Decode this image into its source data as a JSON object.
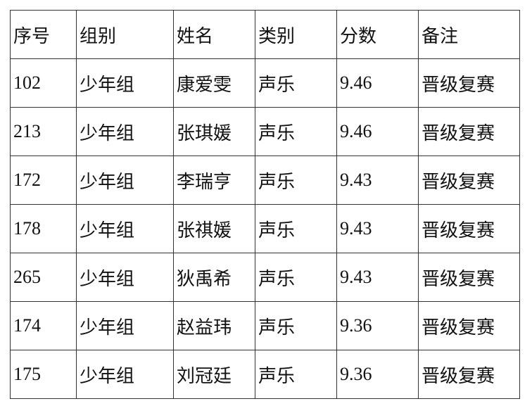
{
  "table": {
    "headers": [
      "序号",
      "组别",
      "姓名",
      "类别",
      "分数",
      "备注"
    ],
    "rows": [
      [
        "102",
        "少年组",
        "康爱雯",
        "声乐",
        "9.46",
        "晋级复赛"
      ],
      [
        "213",
        "少年组",
        "张琪媛",
        "声乐",
        "9.46",
        "晋级复赛"
      ],
      [
        "172",
        "少年组",
        "李瑞亨",
        "声乐",
        "9.43",
        "晋级复赛"
      ],
      [
        "178",
        "少年组",
        "张祺媛",
        "声乐",
        "9.43",
        "晋级复赛"
      ],
      [
        "265",
        "少年组",
        "狄禹希",
        "声乐",
        "9.43",
        "晋级复赛"
      ],
      [
        "174",
        "少年组",
        "赵益玮",
        "声乐",
        "9.36",
        "晋级复赛"
      ],
      [
        "175",
        "少年组",
        "刘冠廷",
        "声乐",
        "9.36",
        "晋级复赛"
      ]
    ]
  }
}
